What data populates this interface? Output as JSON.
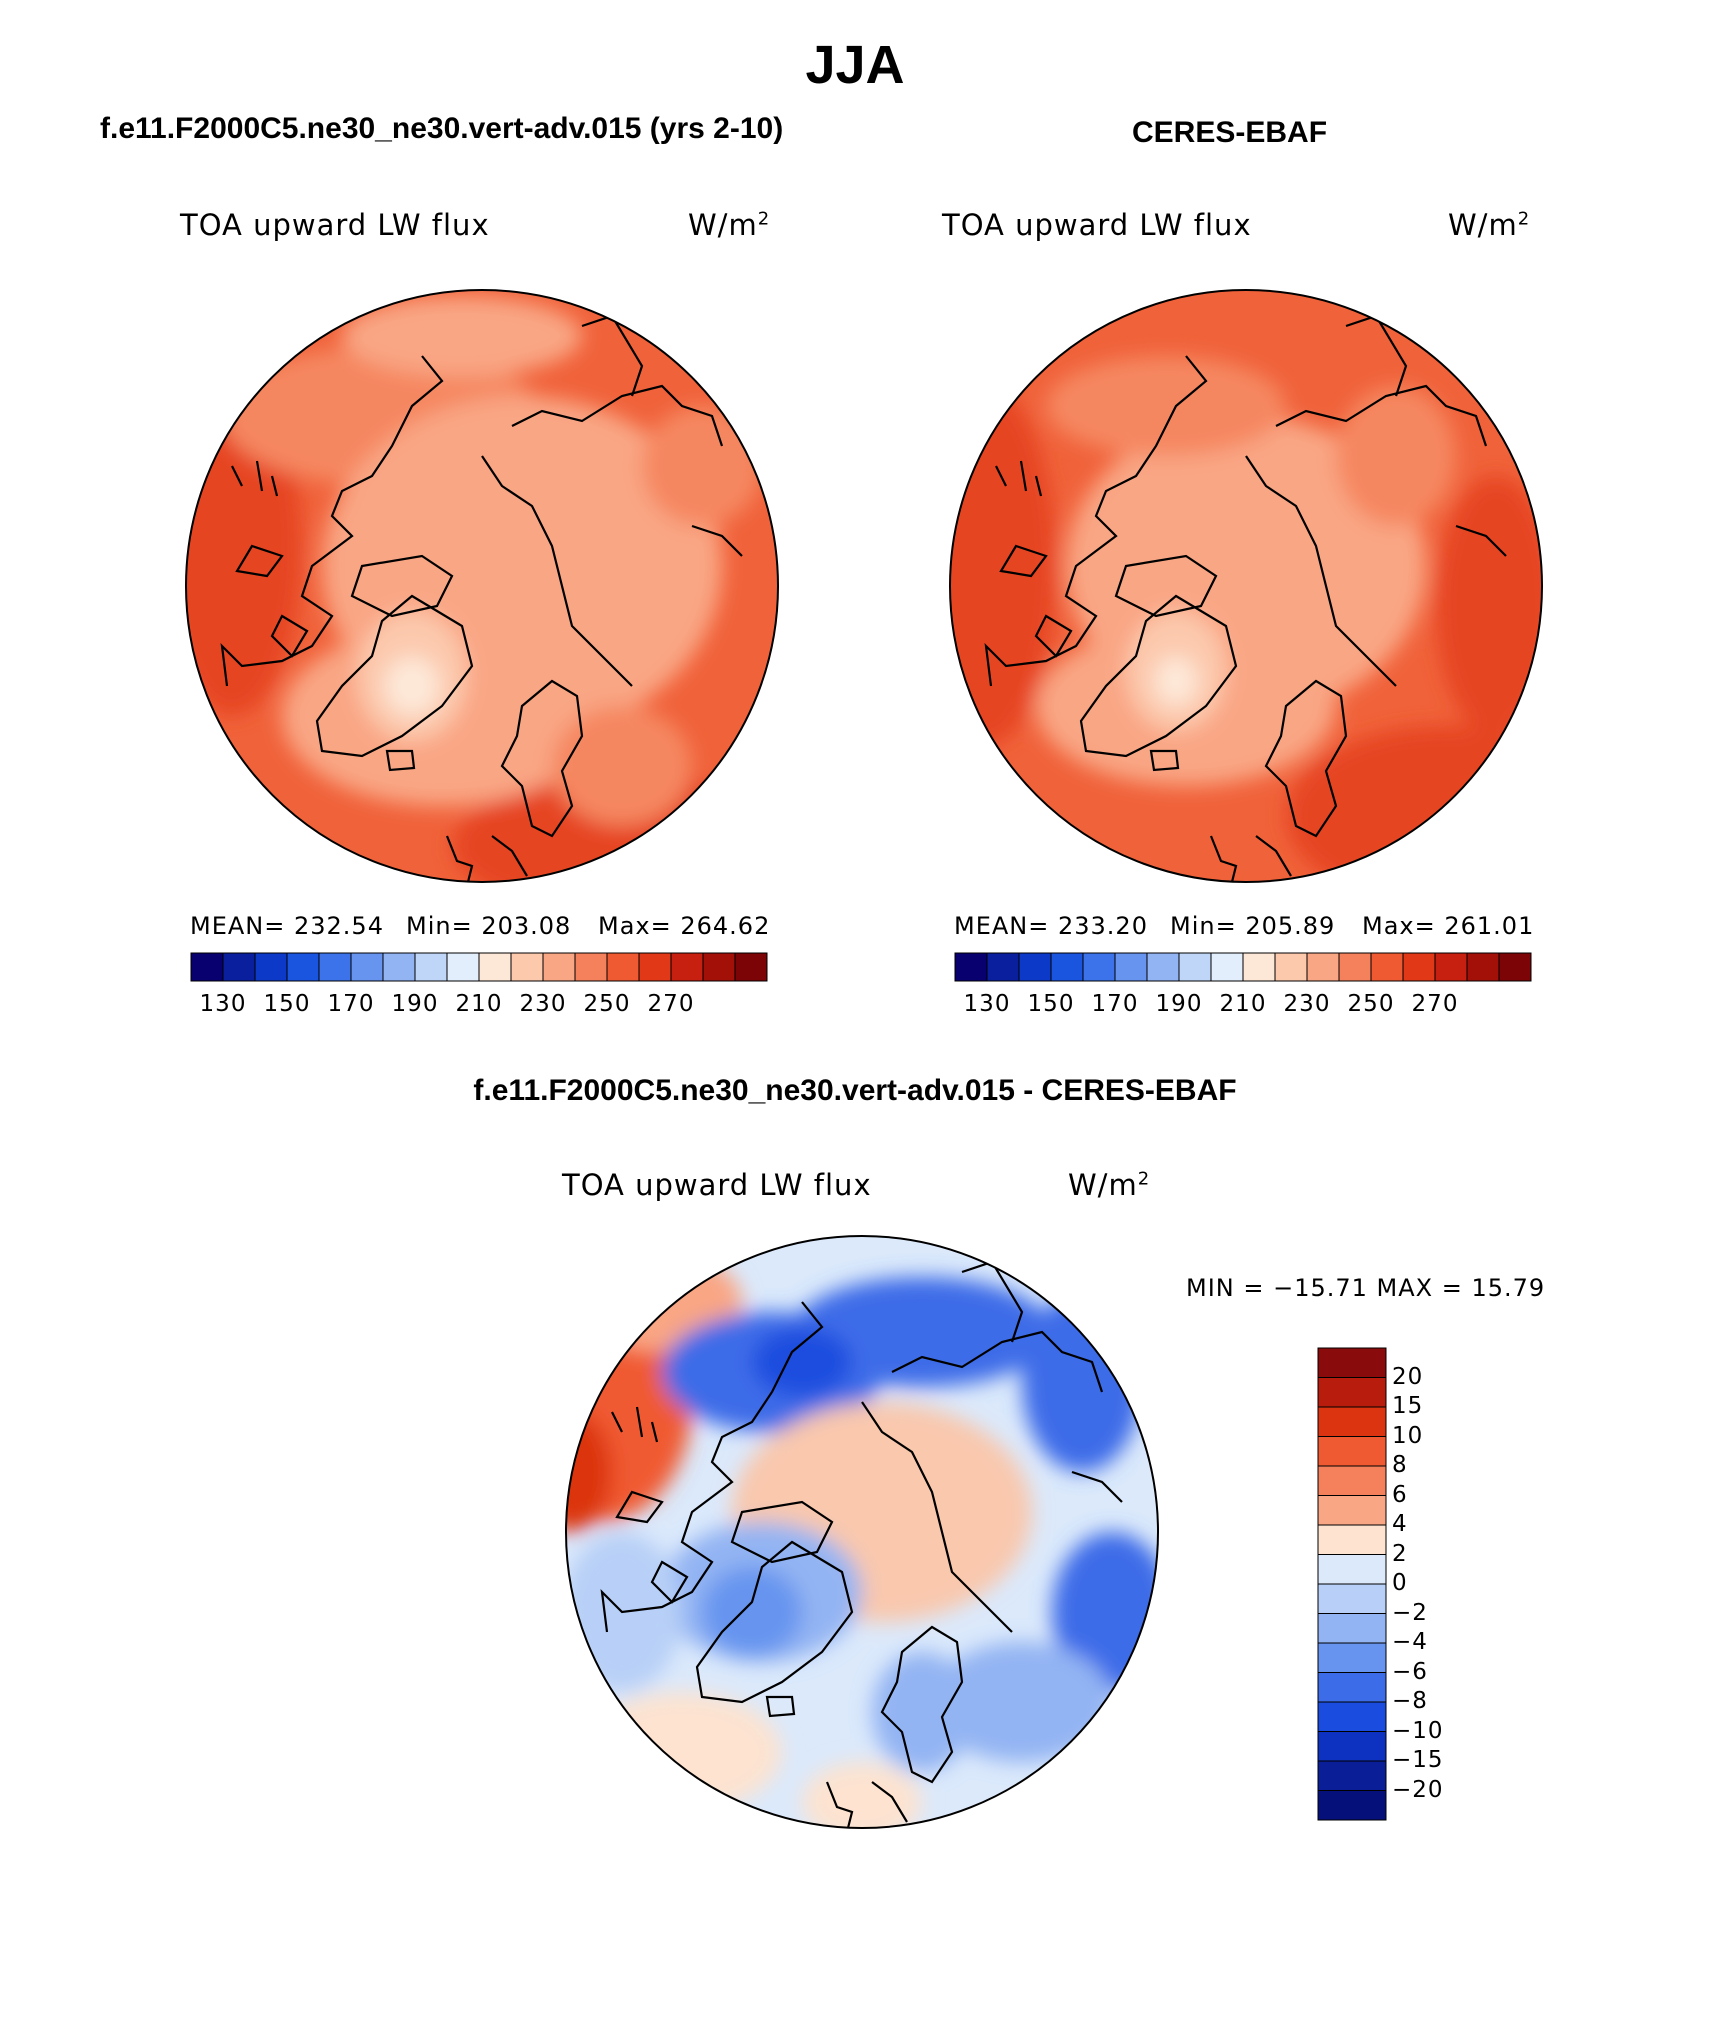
{
  "title": "JJA",
  "panels": [
    {
      "id": "model",
      "title": "f.e11.F2000C5.ne30_ne30.vert-adv.015 (yrs 2-10)",
      "variable_label": "TOA upward LW flux",
      "units_label": "W/m",
      "units_exp": "2",
      "stats": {
        "mean": "MEAN= 232.54",
        "min": "Min= 203.08",
        "max": "Max= 264.62"
      }
    },
    {
      "id": "obs",
      "title": "CERES-EBAF",
      "variable_label": "TOA upward LW flux",
      "units_label": "W/m",
      "units_exp": "2",
      "stats": {
        "mean": "MEAN= 233.20",
        "min": "Min= 205.89",
        "max": "Max= 261.01"
      }
    }
  ],
  "colorbar_abs": {
    "colors": [
      "#08006e",
      "#0a1f9e",
      "#0d39c8",
      "#1a55e0",
      "#3c73ea",
      "#6694ef",
      "#93b4f3",
      "#c0d6f8",
      "#e3eefc",
      "#fde8d8",
      "#fcc9ad",
      "#f9a684",
      "#f5805c",
      "#f05a32",
      "#e13818",
      "#c72010",
      "#a31008",
      "#7c0306"
    ],
    "labels": [
      "130",
      "150",
      "170",
      "190",
      "210",
      "230",
      "250",
      "270"
    ]
  },
  "diff_panel": {
    "title": "f.e11.F2000C5.ne30_ne30.vert-adv.015 - CERES-EBAF",
    "variable_label": "TOA upward LW flux",
    "units_label": "W/m",
    "units_exp": "2",
    "minmax": "MIN = −15.71 MAX =  15.79"
  },
  "colorbar_diff": {
    "colors": [
      "#8a0b0b",
      "#b81c0c",
      "#dc3410",
      "#f05a32",
      "#f5805c",
      "#f9a684",
      "#fde3d0",
      "#dbe9fb",
      "#b8d0f7",
      "#93b4f3",
      "#6694ef",
      "#3c6ce8",
      "#1a4ddf",
      "#0d32c2",
      "#0a1e98",
      "#06107a"
    ],
    "labels": [
      "20",
      "15",
      "10",
      "8",
      "6",
      "4",
      "2",
      "0",
      "−2",
      "−4",
      "−6",
      "−8",
      "−10",
      "−15",
      "−20"
    ]
  }
}
